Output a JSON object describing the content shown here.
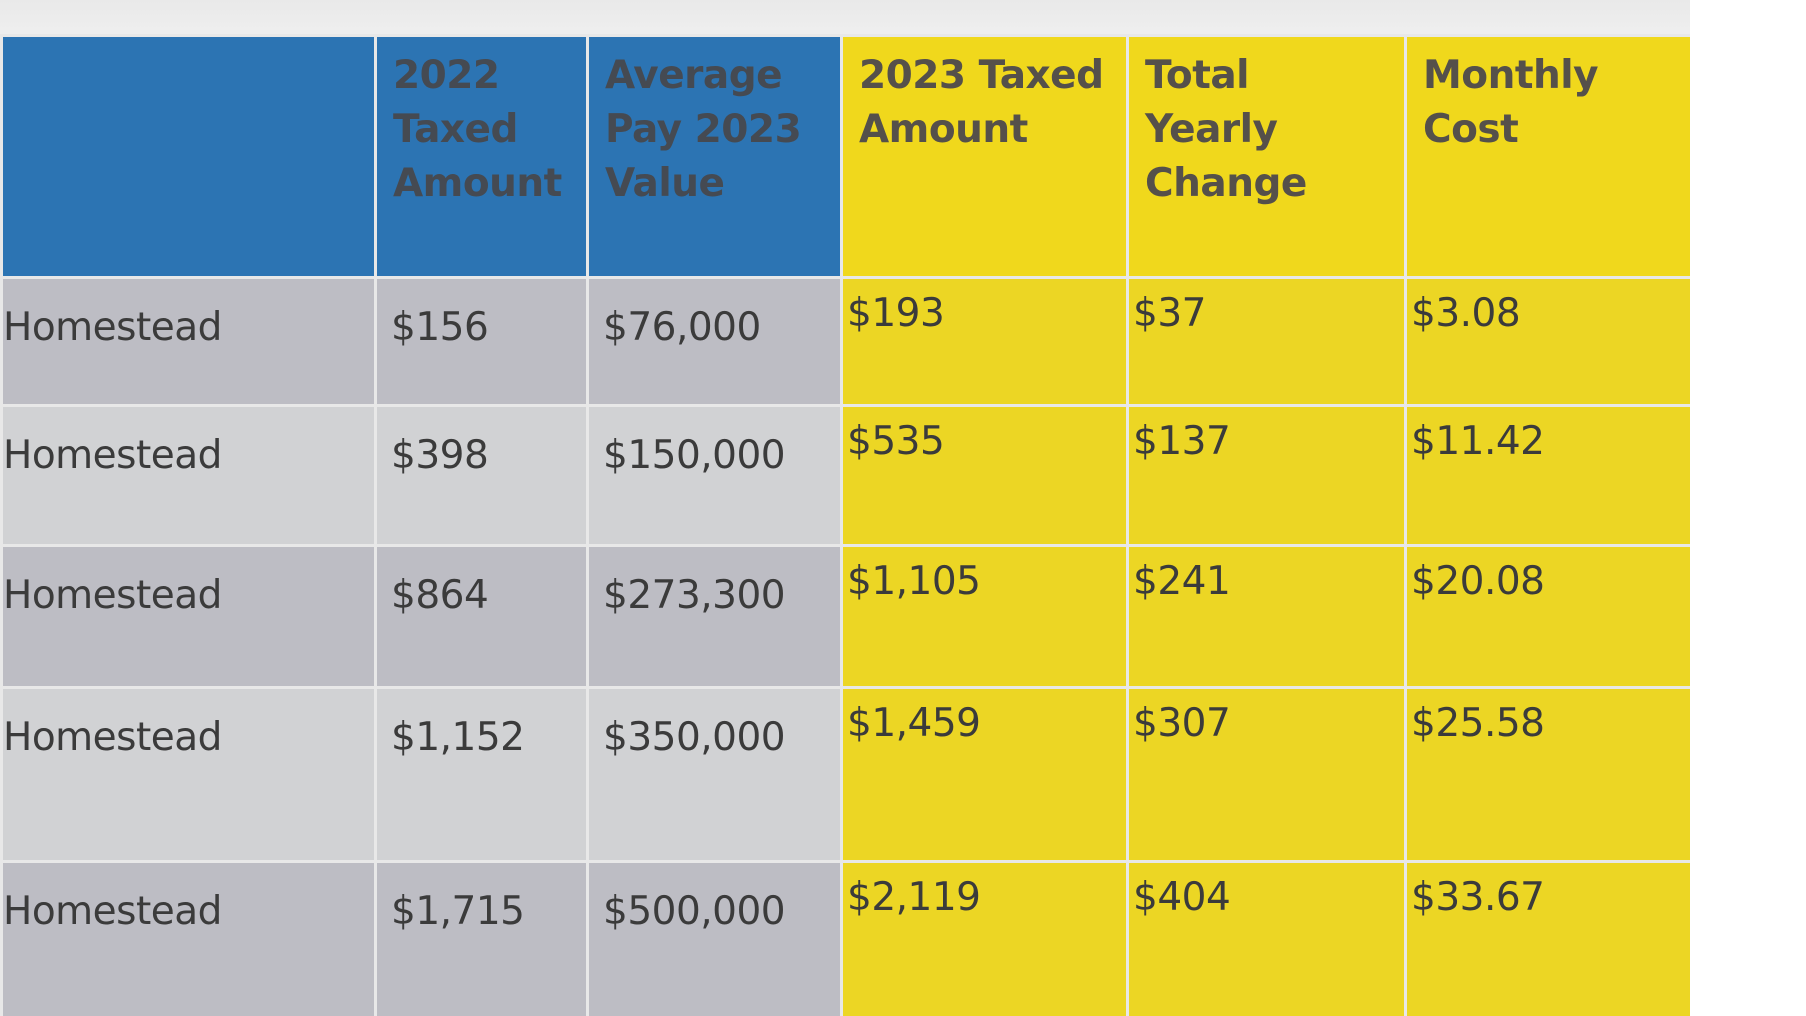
{
  "table": {
    "headers": {
      "blank": "",
      "taxed_2022": "2022 Taxed Amount",
      "avg_value_2023": "Average Pay 2023 Value",
      "taxed_2023": "2023 Taxed Amount",
      "yearly_change": "Total Yearly Change",
      "monthly_cost": "Monthly Cost"
    },
    "rows": [
      {
        "label": "Homestead",
        "taxed_2022": "$156",
        "avg_value_2023": "$76,000",
        "taxed_2023": "$193",
        "yearly_change": "$37",
        "monthly_cost": "$3.08"
      },
      {
        "label": "Homestead",
        "taxed_2022": "$398",
        "avg_value_2023": "$150,000",
        "taxed_2023": "$535",
        "yearly_change": "$137",
        "monthly_cost": "$11.42"
      },
      {
        "label": "Homestead",
        "taxed_2022": "$864",
        "avg_value_2023": "$273,300",
        "taxed_2023": "$1,105",
        "yearly_change": "$241",
        "monthly_cost": "$20.08"
      },
      {
        "label": "Homestead",
        "taxed_2022": "$1,152",
        "avg_value_2023": "$350,000",
        "taxed_2023": "$1,459",
        "yearly_change": "$307",
        "monthly_cost": "$25.58"
      },
      {
        "label": "Homestead",
        "taxed_2022": "$1,715",
        "avg_value_2023": "$500,000",
        "taxed_2023": "$2,119",
        "yearly_change": "$404",
        "monthly_cost": "$33.67"
      }
    ]
  },
  "colors": {
    "header_blue": "#2c74b3",
    "header_yellow": "#f0d81c",
    "cell_yellow": "#ecd624",
    "row_gray_dark": "#bdbdc4",
    "row_gray_light": "#d1d2d4"
  }
}
